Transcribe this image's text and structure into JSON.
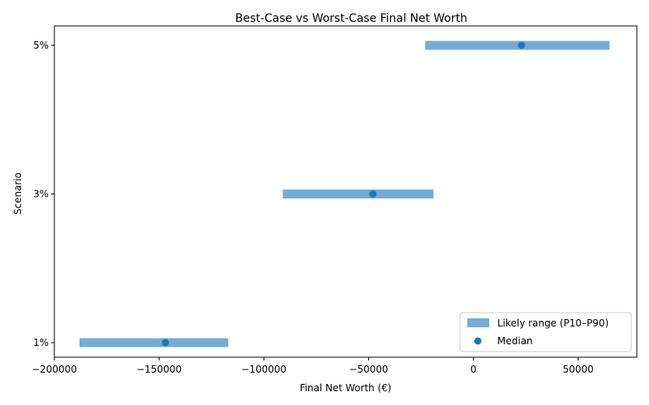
{
  "chart_data": {
    "type": "range",
    "title": "Best-Case vs Worst-Case Final Net Worth",
    "xlabel": "Final Net Worth (€)",
    "ylabel": "Scenario",
    "categories": [
      "1%",
      "3%",
      "5%"
    ],
    "p10": [
      -188000,
      -91000,
      -23000
    ],
    "p90": [
      -117000,
      -19000,
      65000
    ],
    "median": [
      -147000,
      -48000,
      23000
    ],
    "xlim": [
      -200000,
      78000
    ],
    "xticks": [
      -200000,
      -150000,
      -100000,
      -50000,
      0,
      50000
    ],
    "xtick_labels": [
      "−200000",
      "−150000",
      "−100000",
      "−50000",
      "0",
      "50000"
    ],
    "grid": false,
    "legend_position": "lower-right",
    "legend": [
      {
        "label": "Likely range (P10–P90)",
        "kind": "bar",
        "color": "#76acd3"
      },
      {
        "label": "Median",
        "kind": "marker",
        "color": "#1f77b4"
      }
    ],
    "colors": {
      "range": "#76acd3",
      "median": "#1f77b4"
    }
  }
}
